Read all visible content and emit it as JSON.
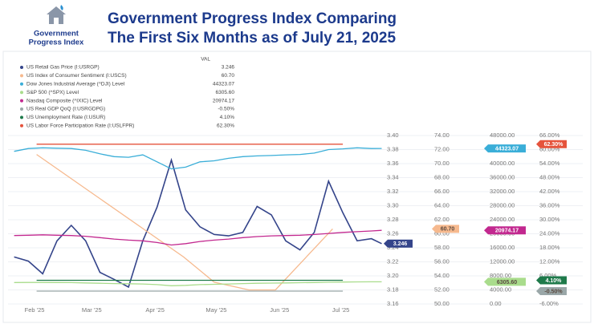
{
  "header": {
    "logo_text": [
      "Government",
      "Progress Index"
    ],
    "title": [
      "Government Progress Index Comparing",
      "The First Six Months as of July 21, 2025"
    ]
  },
  "chart_data": {
    "type": "line",
    "legend_header": "VAL",
    "grid": true,
    "xlim": [
      19,
      203
    ],
    "xticks": [
      {
        "value": 32,
        "label": "Feb '25"
      },
      {
        "value": 60,
        "label": "Mar '25"
      },
      {
        "value": 91,
        "label": "Apr '25"
      },
      {
        "value": 121,
        "label": "May '25"
      },
      {
        "value": 152,
        "label": "Jun '25"
      },
      {
        "value": 182,
        "label": "Jul '25"
      }
    ],
    "axes": [
      {
        "ylim": [
          3.16,
          3.4
        ],
        "yticks": [
          3.16,
          3.18,
          {
            "value": 3.2,
            "label": "3.20"
          },
          3.22,
          3.24,
          3.26,
          3.28,
          {
            "value": 3.3,
            "label": "3.30"
          },
          3.32,
          3.34,
          3.36,
          3.38,
          {
            "value": 3.4,
            "label": "3.40"
          }
        ]
      },
      {
        "ylim": [
          50,
          74
        ],
        "yticks": [
          {
            "value": 50,
            "label": "50.00"
          },
          {
            "value": 52,
            "label": "52.00"
          },
          {
            "value": 54,
            "label": "54.00"
          },
          {
            "value": 56,
            "label": "56.00"
          },
          {
            "value": 58,
            "label": "58.00"
          },
          {
            "value": 60,
            "label": "60.00"
          },
          {
            "value": 62,
            "label": "62.00"
          },
          {
            "value": 64,
            "label": "64.00"
          },
          {
            "value": 66,
            "label": "66.00"
          },
          {
            "value": 68,
            "label": "68.00"
          },
          {
            "value": 70,
            "label": "70.00"
          },
          {
            "value": 72,
            "label": "72.00"
          },
          {
            "value": 74,
            "label": "74.00"
          }
        ]
      },
      {
        "ylim": [
          0,
          48000
        ],
        "yticks": [
          {
            "value": 0,
            "label": "0.00"
          },
          {
            "value": 4000,
            "label": "4000.00"
          },
          {
            "value": 8000,
            "label": "8000.00"
          },
          {
            "value": 12000,
            "label": "12000.00"
          },
          {
            "value": 16000,
            "label": "16000.00"
          },
          {
            "value": 20000,
            "label": "20000.00"
          },
          {
            "value": 24000,
            "label": "24000.00"
          },
          {
            "value": 28000,
            "label": "28000.00"
          },
          {
            "value": 32000,
            "label": "32000.00"
          },
          {
            "value": 36000,
            "label": "36000.00"
          },
          {
            "value": 40000,
            "label": "40000.00"
          },
          {
            "value": 44000,
            "label": "44000.00"
          },
          {
            "value": 48000,
            "label": "48000.00"
          }
        ]
      },
      {
        "ylim": [
          -6,
          66
        ],
        "yticks": [
          {
            "value": -6,
            "label": "-6.00%"
          },
          {
            "value": 0,
            "label": "0.00%"
          },
          {
            "value": 6,
            "label": "6.00%"
          },
          {
            "value": 12,
            "label": "12.00%"
          },
          {
            "value": 18,
            "label": "18.00%"
          },
          {
            "value": 24,
            "label": "24.00%"
          },
          {
            "value": 30,
            "label": "30.00%"
          },
          {
            "value": 36,
            "label": "36.00%"
          },
          {
            "value": 42,
            "label": "42.00%"
          },
          {
            "value": 48,
            "label": "48.00%"
          },
          {
            "value": 54,
            "label": "54.00%"
          },
          {
            "value": 60,
            "label": "60.00%"
          },
          {
            "value": 66,
            "label": "66.00%"
          }
        ]
      }
    ],
    "series": [
      {
        "name": "US Retail Gas Price (I:USRGP)",
        "color": "#34448a",
        "axis": 0,
        "last_label": "3.246",
        "x": [
          22,
          29,
          36,
          43,
          50,
          57,
          64,
          71,
          78,
          85,
          92,
          99,
          106,
          113,
          120,
          127,
          134,
          141,
          148,
          155,
          162,
          169,
          176,
          183,
          190,
          197,
          202
        ],
        "values": [
          3.227,
          3.221,
          3.203,
          3.25,
          3.272,
          3.25,
          3.205,
          3.195,
          3.184,
          3.25,
          3.298,
          3.365,
          3.294,
          3.27,
          3.259,
          3.257,
          3.262,
          3.299,
          3.287,
          3.25,
          3.237,
          3.262,
          3.335,
          3.29,
          3.25,
          3.253,
          3.246
        ]
      },
      {
        "name": "US Index of Consumer Sentiment (I:USCS)",
        "color": "#f6b98e",
        "axis": 1,
        "last_label": "60.70",
        "x": [
          33,
          105,
          120,
          137,
          150,
          178
        ],
        "values": [
          71.3,
          56.7,
          53.1,
          52.0,
          52.0,
          60.7
        ]
      },
      {
        "name": "Dow Jones Industrial Average (^DJI) Level",
        "color": "#3aaed8",
        "axis": 2,
        "last_label": "44323.07",
        "x": [
          22,
          29,
          36,
          43,
          50,
          57,
          64,
          71,
          78,
          85,
          92,
          99,
          106,
          113,
          120,
          127,
          134,
          141,
          148,
          155,
          162,
          169,
          176,
          183,
          190,
          197,
          202
        ],
        "values": [
          43500,
          44300,
          44500,
          44400,
          44300,
          43800,
          42800,
          42000,
          41800,
          42500,
          40500,
          38500,
          39000,
          40500,
          40800,
          41500,
          42000,
          42200,
          42300,
          42500,
          42600,
          43000,
          44000,
          44200,
          44500,
          44300,
          44323.07
        ]
      },
      {
        "name": "S&P 500 (^SPX) Level",
        "color": "#a9dc8c",
        "axis": 2,
        "last_label": "6305.60",
        "x": [
          22,
          29,
          36,
          43,
          50,
          57,
          64,
          71,
          78,
          85,
          92,
          99,
          106,
          113,
          120,
          127,
          134,
          141,
          148,
          155,
          162,
          169,
          176,
          183,
          190,
          197,
          202
        ],
        "values": [
          6100,
          6120,
          6130,
          6110,
          6080,
          6000,
          5900,
          5800,
          5750,
          5700,
          5500,
          5200,
          5300,
          5500,
          5600,
          5700,
          5800,
          5900,
          5950,
          6000,
          6050,
          6100,
          6200,
          6250,
          6280,
          6300,
          6305.6
        ]
      },
      {
        "name": "Nasdaq Composite (^IXIC) Level",
        "color": "#c2288f",
        "axis": 2,
        "last_label": "20974.17",
        "x": [
          22,
          29,
          36,
          43,
          50,
          57,
          64,
          71,
          78,
          85,
          92,
          99,
          106,
          113,
          120,
          127,
          134,
          141,
          148,
          155,
          162,
          169,
          176,
          183,
          190,
          197,
          202
        ],
        "values": [
          19500,
          19600,
          19700,
          19600,
          19500,
          19300,
          18900,
          18500,
          18200,
          18000,
          17500,
          16800,
          17200,
          17800,
          18200,
          18500,
          18900,
          19200,
          19400,
          19500,
          19600,
          19800,
          20100,
          20400,
          20600,
          20800,
          20974.17
        ]
      },
      {
        "name": "US Real GDP QoQ (I:USRGDPG)",
        "color": "#9aa7a8",
        "axis": 3,
        "last_label": "-0.50%",
        "x": [
          33,
          183
        ],
        "values": [
          -0.5,
          -0.5
        ]
      },
      {
        "name": "US Unemployment Rate (I:USUR)",
        "color": "#1e7a4a",
        "axis": 3,
        "last_label": "4.10%",
        "x": [
          33,
          183
        ],
        "values": [
          4.1,
          4.1
        ]
      },
      {
        "name": "US Labor Force Participation Rate (I:USLFPR)",
        "color": "#e5533c",
        "axis": 3,
        "last_label": "62.30%",
        "x": [
          33,
          183
        ],
        "values": [
          62.3,
          62.3
        ]
      }
    ]
  }
}
